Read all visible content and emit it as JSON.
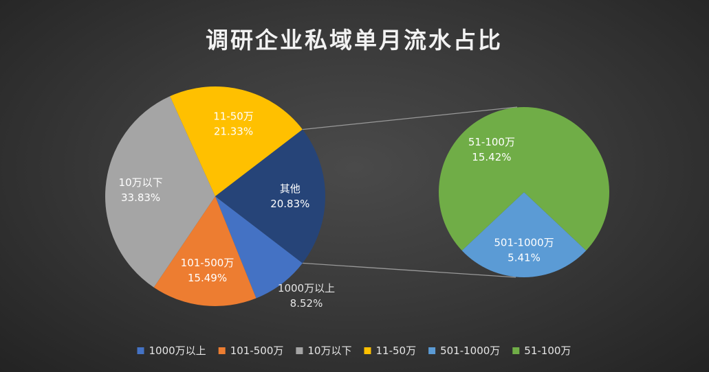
{
  "chart_data": {
    "type": "pie",
    "subtype": "pie-of-pie",
    "title": "调研企业私域单月流水占比",
    "legend_position": "bottom",
    "main_pie": [
      {
        "name": "1000万以上",
        "value": 8.52,
        "label_value": "8.52%",
        "color": "#4472c4",
        "label_color": "#ffffff"
      },
      {
        "name": "101-500万",
        "value": 15.49,
        "label_value": "15.49%",
        "color": "#ed7d31",
        "label_color": "#ffffff"
      },
      {
        "name": "10万以下",
        "value": 33.83,
        "label_value": "33.83%",
        "color": "#a5a5a5",
        "label_color": "#ffffff"
      },
      {
        "name": "11-50万",
        "value": 21.33,
        "label_value": "21.33%",
        "color": "#ffc000",
        "label_color": "#ffffff"
      },
      {
        "name": "其他",
        "value": 20.83,
        "label_value": "20.83%",
        "color": "#264478",
        "label_color": "#ffffff",
        "is_other": true
      }
    ],
    "secondary_pie": [
      {
        "name": "501-1000万",
        "value": 5.41,
        "label_value": "5.41%",
        "color": "#5b9bd5"
      },
      {
        "name": "51-100万",
        "value": 15.42,
        "label_value": "15.42%",
        "color": "#70ad47"
      }
    ],
    "legend": [
      {
        "name": "1000万以上",
        "color": "#4472c4"
      },
      {
        "name": "101-500万",
        "color": "#ed7d31"
      },
      {
        "name": "10万以下",
        "color": "#a5a5a5"
      },
      {
        "name": "11-50万",
        "color": "#ffc000"
      },
      {
        "name": "501-1000万",
        "color": "#5b9bd5"
      },
      {
        "name": "51-100万",
        "color": "#70ad47"
      }
    ]
  }
}
